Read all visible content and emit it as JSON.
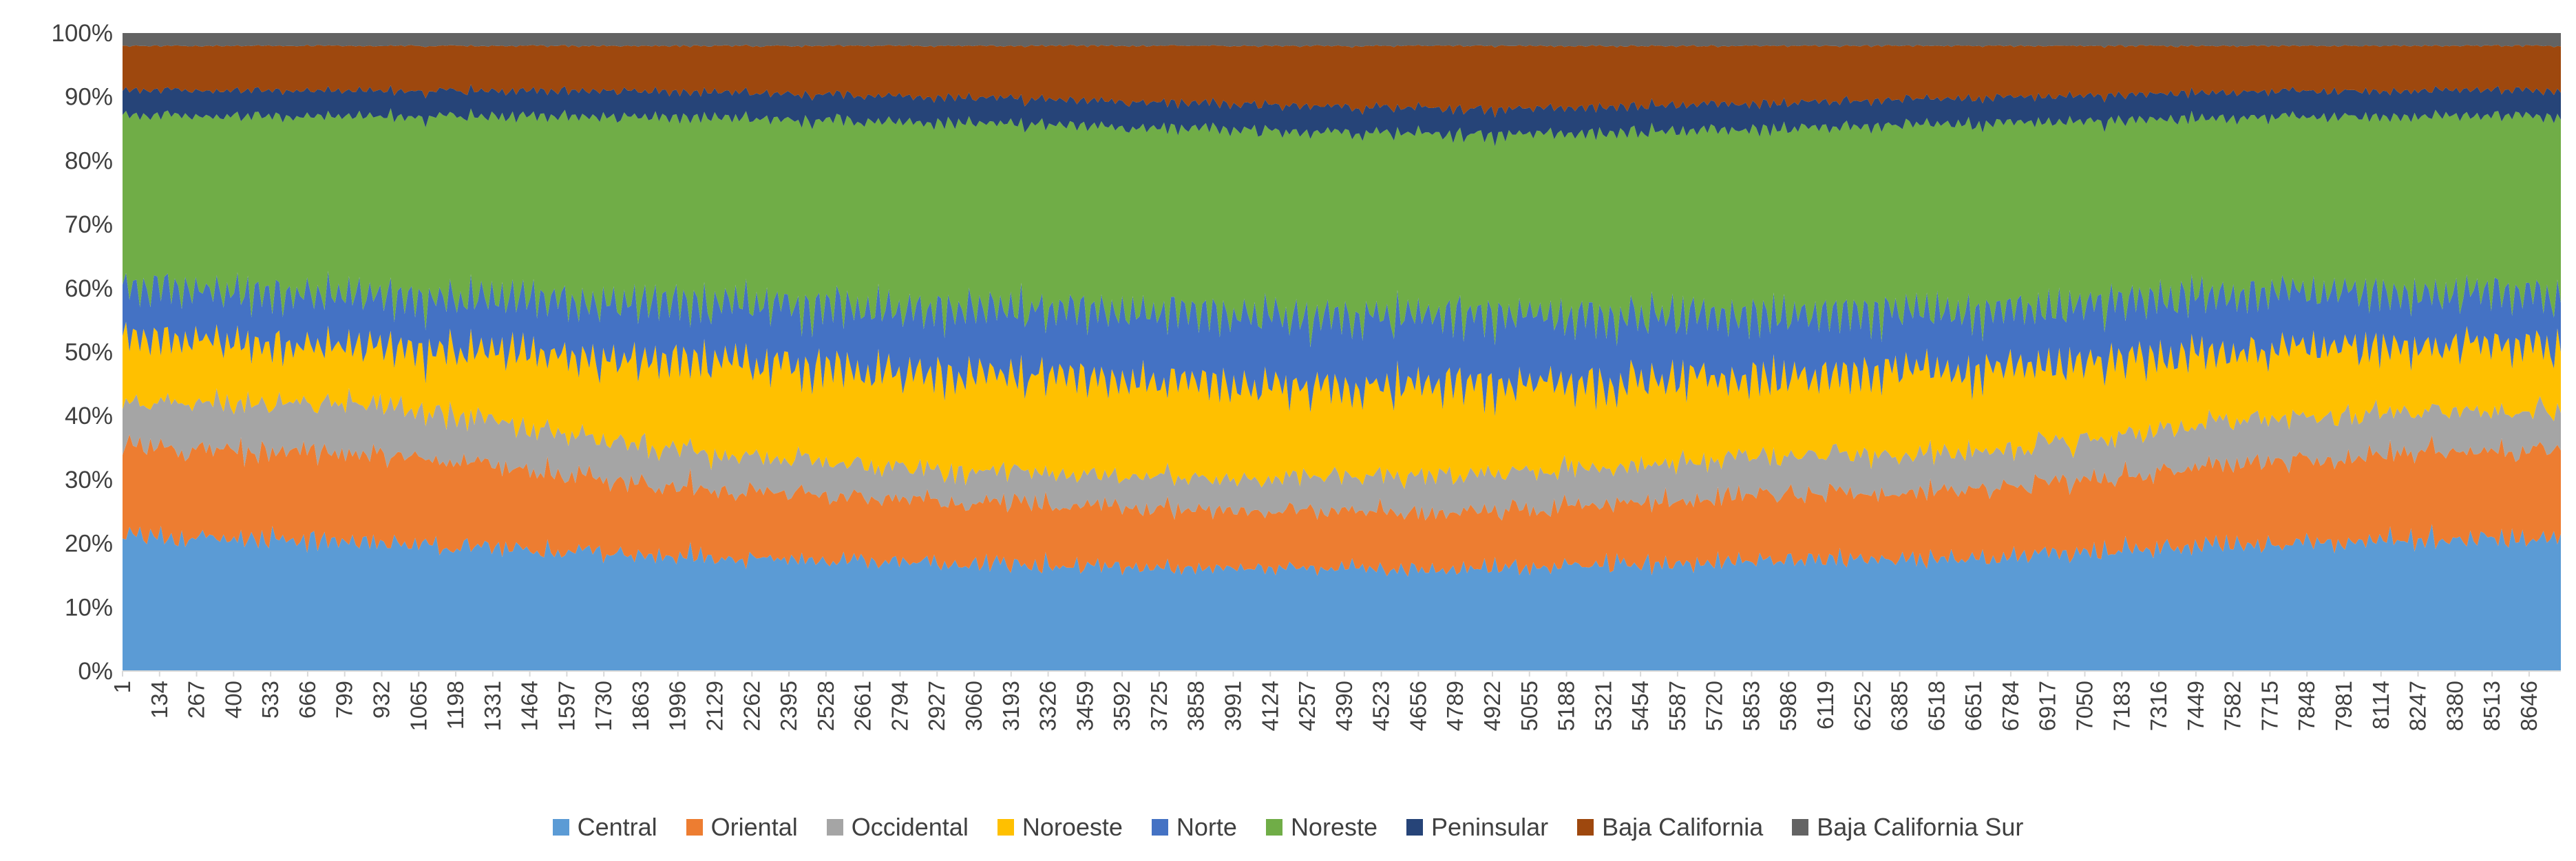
{
  "chart_data": {
    "type": "area",
    "subtype": "100% stacked area",
    "title": "",
    "xlabel": "",
    "ylabel": "",
    "x_range": [
      1,
      8760
    ],
    "x_tick_step": 133,
    "y_axis": {
      "ylim": [
        0,
        100
      ],
      "unit": "%",
      "tick_labels": [
        "0%",
        "10%",
        "20%",
        "30%",
        "40%",
        "50%",
        "60%",
        "70%",
        "80%",
        "90%",
        "100%"
      ]
    },
    "x_tick_labels": [
      "1",
      "134",
      "267",
      "400",
      "533",
      "666",
      "799",
      "932",
      "1065",
      "1198",
      "1331",
      "1464",
      "1597",
      "1730",
      "1863",
      "1996",
      "2129",
      "2262",
      "2395",
      "2528",
      "2661",
      "2794",
      "2927",
      "3060",
      "3193",
      "3326",
      "3459",
      "3592",
      "3725",
      "3858",
      "3991",
      "4124",
      "4257",
      "4390",
      "4523",
      "4656",
      "4789",
      "4922",
      "5055",
      "5188",
      "5321",
      "5454",
      "5587",
      "5720",
      "5853",
      "5986",
      "6119",
      "6252",
      "6385",
      "6518",
      "6651",
      "6784",
      "6917",
      "7050",
      "7183",
      "7316",
      "7449",
      "7582",
      "7715",
      "7848",
      "7981",
      "8114",
      "8247",
      "8380",
      "8513",
      "8646"
    ],
    "grid": false,
    "legend_position": "bottom",
    "series": [
      {
        "name": "Central",
        "color": "#5B9BD5",
        "approx_share": [
          21,
          20,
          18,
          17,
          16,
          16,
          17,
          18,
          20,
          21
        ]
      },
      {
        "name": "Oriental",
        "color": "#ED7D31",
        "approx_share": [
          14,
          14,
          11,
          10,
          9,
          9,
          10,
          11,
          13,
          14
        ]
      },
      {
        "name": "Occidental",
        "color": "#A5A5A5",
        "approx_share": [
          7,
          8,
          6,
          5,
          5,
          6,
          6,
          6,
          7,
          6
        ]
      },
      {
        "name": "Noroeste",
        "color": "#FFC000",
        "approx_share": [
          10,
          9,
          14,
          15,
          15,
          14,
          13,
          13,
          11,
          10
        ]
      },
      {
        "name": "Norte",
        "color": "#4472C4",
        "approx_share": [
          8,
          8,
          9,
          10,
          11,
          11,
          10,
          9,
          9,
          8
        ]
      },
      {
        "name": "Noreste",
        "color": "#70AD47",
        "approx_share": [
          27,
          28,
          29,
          29,
          29,
          28,
          29,
          29,
          27,
          28
        ]
      },
      {
        "name": "Peninsular",
        "color": "#264478",
        "approx_share": [
          4,
          4,
          4,
          4,
          4,
          4,
          4,
          4,
          4,
          4
        ]
      },
      {
        "name": "Baja California",
        "color": "#9E480E",
        "approx_share": [
          7,
          7,
          7,
          8,
          9,
          10,
          9,
          8,
          7,
          7
        ]
      },
      {
        "name": "Baja California Sur",
        "color": "#636363",
        "approx_share": [
          2,
          2,
          2,
          2,
          2,
          2,
          2,
          2,
          2,
          2
        ]
      }
    ]
  }
}
